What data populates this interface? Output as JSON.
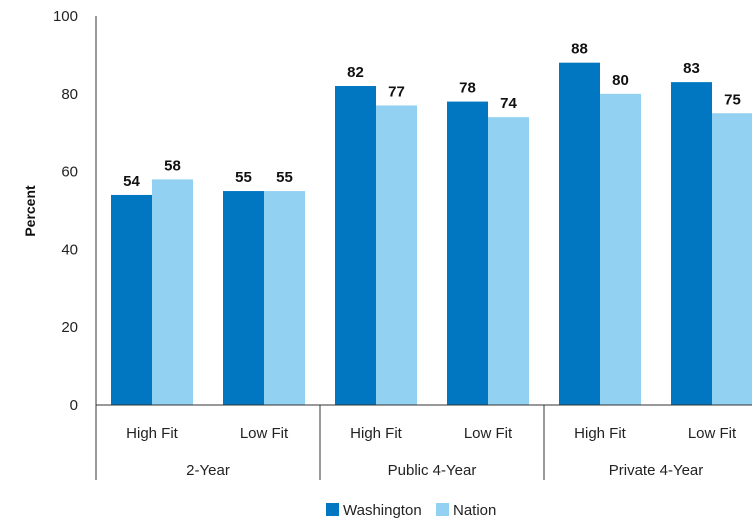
{
  "chart_data": {
    "type": "bar",
    "ylabel": "Percent",
    "ylim": [
      0,
      100
    ],
    "yticks": [
      0,
      20,
      40,
      60,
      80,
      100
    ],
    "grid": false,
    "legend_position": "bottom-center",
    "groups": [
      {
        "label": "2-Year",
        "categories": [
          "High Fit",
          "Low Fit"
        ]
      },
      {
        "label": "Public 4-Year",
        "categories": [
          "High Fit",
          "Low Fit"
        ]
      },
      {
        "label": "Private 4-Year",
        "categories": [
          "High Fit",
          "Low Fit"
        ]
      }
    ],
    "series": [
      {
        "name": "Washington",
        "color": "#0077c0",
        "values": [
          54,
          55,
          82,
          78,
          88,
          83
        ]
      },
      {
        "name": "Nation",
        "color": "#93d1f2",
        "values": [
          58,
          55,
          77,
          74,
          80,
          75
        ]
      }
    ]
  }
}
